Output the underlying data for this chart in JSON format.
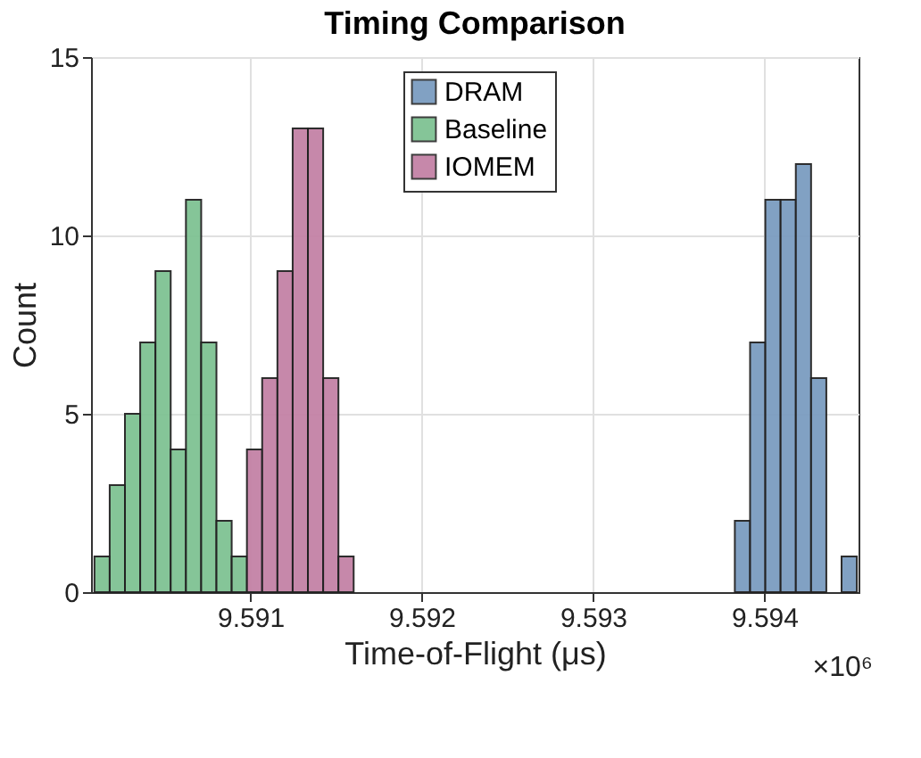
{
  "chart_data": {
    "type": "histogram",
    "title": "Timing Comparison",
    "xlabel": "Time-of-Flight (μs)",
    "ylabel": "Count",
    "bins": [
      9.59009,
      9.590179,
      9.590268,
      9.590357,
      9.590446,
      9.590535,
      9.590624,
      9.590713,
      9.590802,
      9.590891,
      9.59098,
      9.591069,
      9.591158,
      9.591247,
      9.591336,
      9.591425,
      9.591514,
      9.591603,
      9.591692,
      9.591781,
      9.59187,
      9.591959,
      9.592048,
      9.592137,
      9.592226,
      9.592315,
      9.592404,
      9.592493,
      9.592582,
      9.592671,
      9.59276,
      9.592849,
      9.592938,
      9.593027,
      9.593116,
      9.593205,
      9.593294,
      9.593383,
      9.593472,
      9.593561,
      9.59365,
      9.593739,
      9.593828,
      9.593917,
      9.594006,
      9.594095,
      9.594184,
      9.594273,
      9.594362,
      9.594451,
      9.59454
    ],
    "series": [
      {
        "name": "DRAM",
        "color": "#7b9cc0",
        "values": [
          null,
          null,
          null,
          null,
          null,
          null,
          null,
          null,
          null,
          null,
          null,
          null,
          null,
          null,
          null,
          null,
          null,
          null,
          null,
          null,
          null,
          null,
          null,
          null,
          null,
          null,
          null,
          null,
          null,
          null,
          null,
          null,
          null,
          null,
          null,
          null,
          null,
          null,
          null,
          null,
          null,
          null,
          2,
          7,
          11,
          11,
          12,
          6,
          null,
          1
        ]
      },
      {
        "name": "Baseline",
        "color": "#7fc293",
        "values": [
          1,
          3,
          5,
          7,
          9,
          4,
          11,
          7,
          2,
          1,
          null,
          null,
          null,
          null,
          null,
          null,
          null,
          null,
          null,
          null,
          null,
          null,
          null,
          null,
          null,
          null,
          null,
          null,
          null,
          null,
          null,
          null,
          null,
          null,
          null,
          null,
          null,
          null,
          null,
          null,
          null,
          null,
          null,
          null,
          null,
          null,
          null,
          null,
          null,
          null
        ]
      },
      {
        "name": "IOMEM",
        "color": "#c482a6",
        "values": [
          null,
          null,
          null,
          null,
          null,
          null,
          null,
          null,
          null,
          null,
          4,
          6,
          9,
          13,
          13,
          6,
          1,
          null,
          null,
          null,
          null,
          null,
          null,
          null,
          null,
          null,
          null,
          null,
          null,
          null,
          null,
          null,
          null,
          null,
          null,
          null,
          null,
          null,
          null,
          null,
          null,
          null,
          null,
          null,
          null,
          null,
          null,
          null,
          null,
          null
        ]
      }
    ],
    "xlim": [
      9.59007,
      9.59455
    ],
    "xticks": [
      9.591,
      9.592,
      9.593,
      9.594
    ],
    "ylim": [
      0,
      15
    ],
    "yticks": [
      0,
      5,
      10,
      15
    ],
    "grid": true,
    "legend": "top",
    "annotations": [
      "×10⁶"
    ]
  }
}
